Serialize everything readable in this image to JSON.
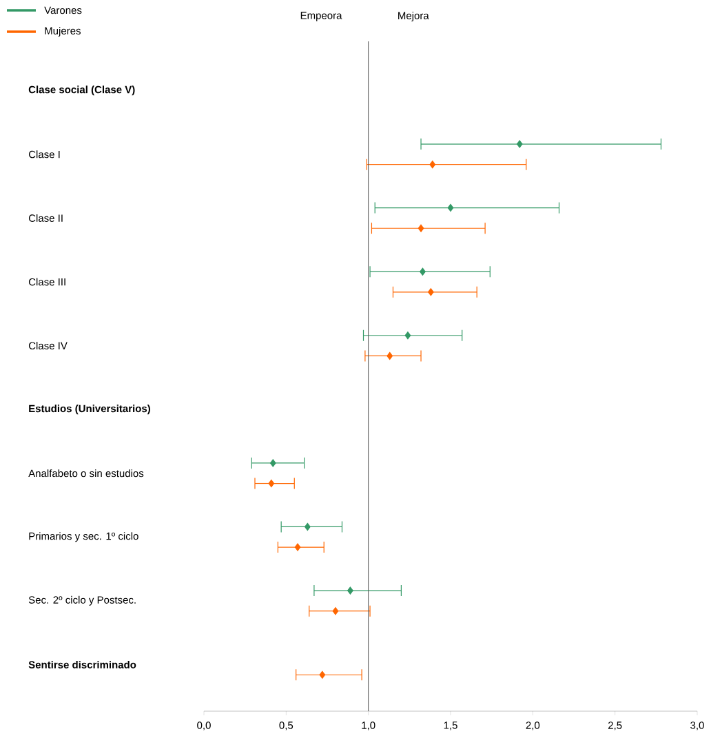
{
  "chart_data": {
    "type": "scatter",
    "orientation": "horizontal",
    "categories": [
      "**Clase social (Clase V)**",
      "Clase I",
      "Clase II",
      "Clase III",
      "Clase IV",
      "**Estudios (Universitarios)**",
      "Analfabeto o sin estudios",
      "Primarios y sec. 1º ciclo",
      "Sec. 2º ciclo y Postsec.",
      "**Sentirse discriminado**"
    ],
    "series": [
      {
        "name": "Varones",
        "color": "#339966",
        "values": [
          null,
          1.92,
          1.5,
          1.33,
          1.24,
          null,
          0.42,
          0.63,
          0.89,
          null
        ],
        "errors": [
          null,
          [
            1.32,
            2.78
          ],
          [
            1.04,
            2.16
          ],
          [
            1.01,
            1.74
          ],
          [
            0.97,
            1.57
          ],
          null,
          [
            0.29,
            0.61
          ],
          [
            0.47,
            0.84
          ],
          [
            0.67,
            1.2
          ],
          null
        ]
      },
      {
        "name": "Mujeres",
        "color": "#ff6600",
        "values": [
          null,
          1.39,
          1.32,
          1.38,
          1.13,
          null,
          0.41,
          0.57,
          0.8,
          0.72
        ],
        "errors": [
          null,
          [
            0.99,
            1.96
          ],
          [
            1.02,
            1.71
          ],
          [
            1.15,
            1.66
          ],
          [
            0.98,
            1.32
          ],
          null,
          [
            0.31,
            0.55
          ],
          [
            0.45,
            0.73
          ],
          [
            0.64,
            1.01
          ],
          [
            0.56,
            0.96
          ]
        ]
      }
    ],
    "xlim": [
      0,
      3
    ],
    "xticks": [
      {
        "value": 0,
        "label": "0,0"
      },
      {
        "value": 0.5,
        "label": "0,5"
      },
      {
        "value": 1,
        "label": "1,0"
      },
      {
        "value": 1.5,
        "label": "1,5"
      },
      {
        "value": 2,
        "label": "2,0"
      },
      {
        "value": 2.5,
        "label": "2,5"
      },
      {
        "value": 3,
        "label": "3,0"
      }
    ],
    "ref_lines": [
      {
        "axis": "x",
        "value": 1,
        "color": "#555555"
      }
    ],
    "annotations": [
      "Empeora",
      "Mejora"
    ],
    "legend": "top left",
    "marker": "diamond",
    "grid": false
  }
}
